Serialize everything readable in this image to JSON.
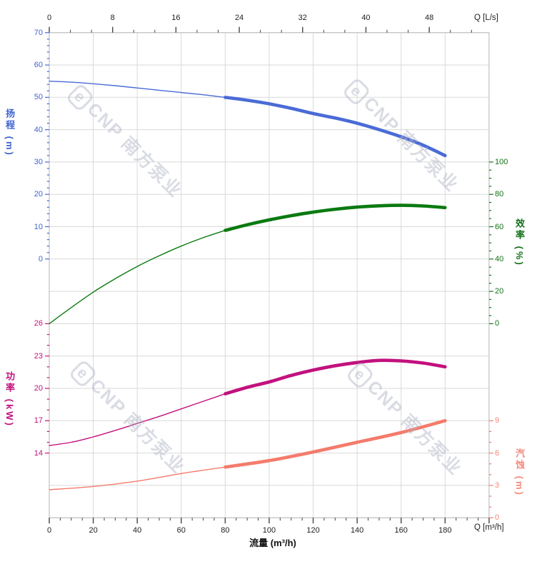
{
  "watermark": {
    "logo": "e",
    "text": "CNP 南方泵业"
  },
  "axes": {
    "top": {
      "unit_label": "Q [L/s]",
      "ticks": [
        0,
        8,
        16,
        24,
        32,
        40,
        48
      ]
    },
    "bottom": {
      "unit_label": "Q [m³/h]",
      "title": "流量 (m³/h)",
      "ticks": [
        0,
        20,
        40,
        60,
        80,
        100,
        120,
        140,
        160,
        180
      ]
    },
    "head": {
      "title": "扬程 (m)",
      "color": "#3f63cf",
      "ticks": [
        70,
        60,
        50,
        40,
        30,
        20,
        10,
        0
      ]
    },
    "power": {
      "title": "功率 (kW)",
      "color": "#c2117e",
      "ticks": [
        26,
        23,
        20,
        17,
        14
      ]
    },
    "efficiency": {
      "title": "效率 (%)",
      "color": "#147019",
      "ticks": [
        100,
        80,
        60,
        40,
        20,
        0
      ]
    },
    "npsh": {
      "title": "汽蚀 (m)",
      "color": "#f3897b",
      "ticks": [
        9,
        6,
        3,
        0
      ]
    }
  },
  "chart_data": {
    "type": "line",
    "xlabel": "流量 (m³/h)",
    "x_unit_top": "Q [L/s]",
    "x_range_m3h": [
      0,
      200
    ],
    "x_range_Ls": [
      0,
      55.5
    ],
    "grid": true,
    "axes_ranges": {
      "head_m": [
        0,
        70
      ],
      "efficiency_pct": [
        0,
        100
      ],
      "power_kW": [
        14,
        26
      ],
      "npsh_m": [
        0,
        9
      ]
    },
    "series": [
      {
        "name": "head",
        "axis": "head",
        "color": "#4a6bd6",
        "bold_from": 80,
        "points": [
          [
            0,
            55
          ],
          [
            10,
            54.7
          ],
          [
            20,
            54.2
          ],
          [
            30,
            53.6
          ],
          [
            40,
            52.9
          ],
          [
            50,
            52.2
          ],
          [
            60,
            51.5
          ],
          [
            70,
            50.8
          ],
          [
            80,
            50
          ],
          [
            90,
            49.1
          ],
          [
            100,
            48
          ],
          [
            110,
            46.6
          ],
          [
            120,
            45
          ],
          [
            130,
            43.6
          ],
          [
            140,
            42
          ],
          [
            150,
            40
          ],
          [
            160,
            37.8
          ],
          [
            170,
            35.2
          ],
          [
            180,
            32
          ]
        ]
      },
      {
        "name": "efficiency",
        "axis": "efficiency",
        "color": "#0b7a10",
        "bold_from": 80,
        "points": [
          [
            0,
            0
          ],
          [
            10,
            10
          ],
          [
            20,
            19.5
          ],
          [
            30,
            27.8
          ],
          [
            40,
            35.4
          ],
          [
            50,
            42
          ],
          [
            60,
            48
          ],
          [
            70,
            53.2
          ],
          [
            80,
            57.7
          ],
          [
            90,
            61.2
          ],
          [
            100,
            64.2
          ],
          [
            110,
            66.8
          ],
          [
            120,
            69
          ],
          [
            130,
            70.8
          ],
          [
            140,
            72.1
          ],
          [
            150,
            72.9
          ],
          [
            160,
            73.2
          ],
          [
            170,
            72.8
          ],
          [
            180,
            71.8
          ]
        ]
      },
      {
        "name": "power",
        "axis": "power",
        "color": "#c2117e",
        "bold_from": 80,
        "points": [
          [
            0,
            14.7
          ],
          [
            10,
            15.0
          ],
          [
            20,
            15.5
          ],
          [
            30,
            16.1
          ],
          [
            40,
            16.75
          ],
          [
            50,
            17.4
          ],
          [
            60,
            18.1
          ],
          [
            70,
            18.8
          ],
          [
            80,
            19.5
          ],
          [
            90,
            20.1
          ],
          [
            100,
            20.6
          ],
          [
            110,
            21.2
          ],
          [
            120,
            21.7
          ],
          [
            130,
            22.1
          ],
          [
            140,
            22.4
          ],
          [
            150,
            22.6
          ],
          [
            160,
            22.55
          ],
          [
            170,
            22.35
          ],
          [
            180,
            22.0
          ]
        ]
      },
      {
        "name": "npsh",
        "axis": "npsh",
        "color": "#f47b6b",
        "bold_from": 80,
        "points": [
          [
            0,
            2.6
          ],
          [
            20,
            2.9
          ],
          [
            40,
            3.4
          ],
          [
            60,
            4.1
          ],
          [
            80,
            4.7
          ],
          [
            100,
            5.3
          ],
          [
            120,
            6.1
          ],
          [
            140,
            7.0
          ],
          [
            160,
            7.9
          ],
          [
            180,
            9.0
          ]
        ]
      }
    ]
  }
}
